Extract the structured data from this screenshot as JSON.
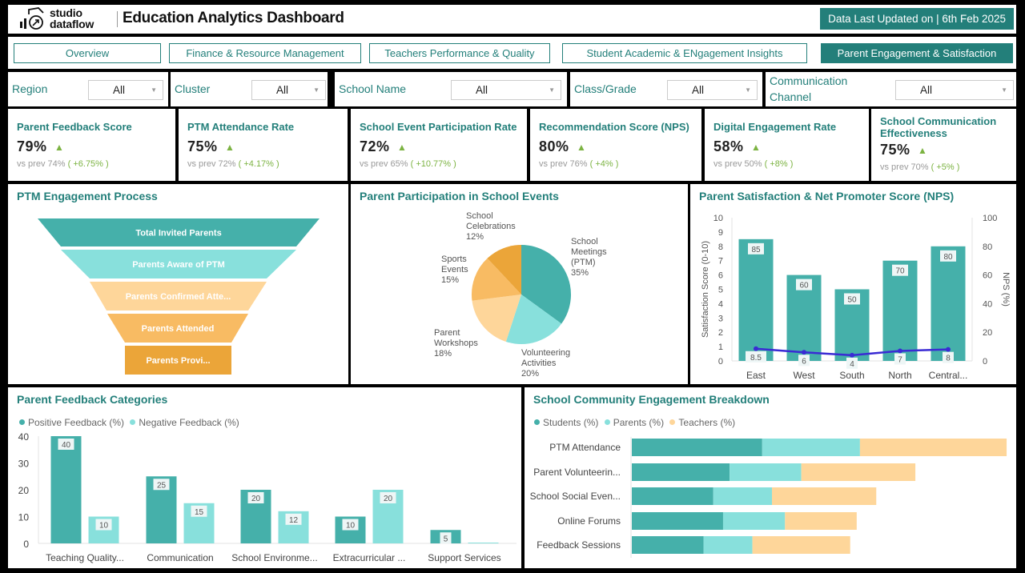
{
  "header": {
    "logo_line1": "studio",
    "logo_line2": "dataflow",
    "title": "Education Analytics Dashboard",
    "last_updated": "Data Last Updated on | 6th Feb 2025"
  },
  "tabs": [
    {
      "label": "Overview",
      "active": false
    },
    {
      "label": "Finance & Resource Management",
      "active": false
    },
    {
      "label": "Teachers Performance & Quality",
      "active": false
    },
    {
      "label": "Student Academic & ENgagement Insights",
      "active": false
    },
    {
      "label": "Parent Engagement & Satisfaction",
      "active": true
    }
  ],
  "filters": [
    {
      "label": "Region",
      "value": "All"
    },
    {
      "label": "Cluster",
      "value": "All"
    },
    {
      "label": "School Name",
      "value": "All"
    },
    {
      "label": "Class/Grade",
      "value": "All"
    },
    {
      "label": "Communication Channel",
      "value": "All"
    }
  ],
  "kpis": [
    {
      "title": "Parent Feedback Score",
      "value": "79%",
      "trend": "up",
      "prev_label": "vs prev",
      "prev": "74%",
      "delta": "( +6.75% )"
    },
    {
      "title": "PTM Attendance Rate",
      "value": "75%",
      "trend": "up",
      "prev_label": "vs prev",
      "prev": "72%",
      "delta": "( +4.17% )"
    },
    {
      "title": "School Event Participation Rate",
      "value": "72%",
      "trend": "up",
      "prev_label": "vs prev",
      "prev": "65%",
      "delta": "( +10.77% )"
    },
    {
      "title": "Recommendation Score (NPS)",
      "value": "80%",
      "trend": "up",
      "prev_label": "vs prev",
      "prev": "76%",
      "delta": "( +4% )"
    },
    {
      "title": "Digital Engagement Rate",
      "value": "58%",
      "trend": "up",
      "prev_label": "vs prev",
      "prev": "50%",
      "delta": "( +8% )"
    },
    {
      "title": "School Communication Effectiveness",
      "value": "75%",
      "trend": "up",
      "prev_label": "vs prev",
      "prev": "70%",
      "delta": "( +5% )"
    }
  ],
  "colors": {
    "brand": "#237f7a",
    "teal": "#45b0aa",
    "light_teal": "#88e0dc",
    "light_orange": "#fed69a",
    "orange": "#f8bb63",
    "dark_orange": "#eba539",
    "line": "#3a2bd4",
    "up": "#7cb342"
  },
  "chart_data": [
    {
      "id": "funnel",
      "type": "funnel",
      "title": "PTM Engagement Process",
      "stages": [
        {
          "label": "Total Invited Parents",
          "color": "#45b0aa"
        },
        {
          "label": "Parents Aware of PTM",
          "color": "#88e0dc"
        },
        {
          "label": "Parents Confirmed Atte...",
          "color": "#fed69a"
        },
        {
          "label": "Parents Attended",
          "color": "#f8bb63"
        },
        {
          "label": "Parents Provi...",
          "color": "#eba539"
        }
      ]
    },
    {
      "id": "pie",
      "type": "pie",
      "title": "Parent Participation in School Events",
      "slices": [
        {
          "label": [
            "School",
            "Meetings",
            "(PTM)"
          ],
          "value": 35,
          "pct": "35%",
          "color": "#45b0aa"
        },
        {
          "label": [
            "Volunteering",
            "Activities"
          ],
          "value": 20,
          "pct": "20%",
          "color": "#88e0dc"
        },
        {
          "label": [
            "Parent",
            "Workshops"
          ],
          "value": 18,
          "pct": "18%",
          "color": "#fed69a"
        },
        {
          "label": [
            "Sports",
            "Events"
          ],
          "value": 15,
          "pct": "15%",
          "color": "#f8bb63"
        },
        {
          "label": [
            "School",
            "Celebrations"
          ],
          "value": 12,
          "pct": "12%",
          "color": "#eba539"
        }
      ]
    },
    {
      "id": "nps",
      "type": "bar",
      "title": "Parent Satisfaction & Net Promoter Score (NPS)",
      "categories": [
        "East",
        "West",
        "South",
        "North",
        "Central..."
      ],
      "series": [
        {
          "name": "NPS (%)",
          "type": "bar",
          "values": [
            85,
            60,
            50,
            70,
            80
          ],
          "color": "#45b0aa"
        },
        {
          "name": "Satisfaction Score (0-10)",
          "type": "line",
          "values": [
            8.5,
            6,
            4,
            7,
            8
          ],
          "color": "#3a2bd4"
        }
      ],
      "ylabel": "Satisfaction Score (0-10)",
      "ylim": [
        0,
        10
      ],
      "yticks": [
        "0",
        "1",
        "2",
        "3",
        "4",
        "5",
        "6",
        "7",
        "8",
        "9",
        "10"
      ],
      "y2label": "NPS (%)",
      "y2lim": [
        0,
        100
      ],
      "y2ticks": [
        "0",
        "20",
        "40",
        "60",
        "80",
        "100"
      ]
    },
    {
      "id": "feedback",
      "type": "bar",
      "title": "Parent Feedback Categories",
      "categories": [
        "Teaching Quality...",
        "Communication",
        "School Environme...",
        "Extracurricular ...",
        "Support Services"
      ],
      "series": [
        {
          "name": "Positive Feedback (%)",
          "values": [
            40,
            25,
            20,
            10,
            5
          ],
          "color": "#45b0aa"
        },
        {
          "name": "Negative Feedback (%)",
          "values": [
            10,
            15,
            12,
            20,
            0
          ],
          "color": "#88e0dc"
        }
      ],
      "ylim": [
        0,
        40
      ],
      "yticks": [
        "0",
        "10",
        "20",
        "30",
        "40"
      ],
      "legend": "top-left"
    },
    {
      "id": "community",
      "type": "bar",
      "orientation": "horizontal-stacked",
      "title": "School Community Engagement Breakdown",
      "categories": [
        "PTM Attendance",
        "Parent Volunteerin...",
        "School Social Even...",
        "Online Forums",
        "Feedback Sessions"
      ],
      "series": [
        {
          "name": "Students (%)",
          "values": [
            40,
            30,
            25,
            28,
            22
          ],
          "color": "#45b0aa"
        },
        {
          "name": "Parents (%)",
          "values": [
            30,
            22,
            18,
            19,
            15
          ],
          "color": "#88e0dc"
        },
        {
          "name": "Teachers (%)",
          "values": [
            45,
            35,
            32,
            22,
            30
          ],
          "color": "#fed69a"
        }
      ],
      "legend": "top-left"
    }
  ]
}
